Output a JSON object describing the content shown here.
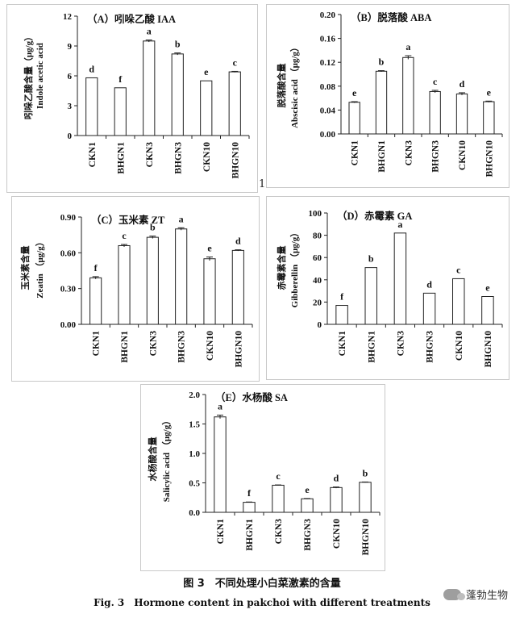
{
  "chart_data": [
    {
      "type": "bar",
      "title": "（A）吲哚乙酸 IAA",
      "ylabel_cn": "吲哚乙酸含量（μg/g）",
      "ylabel_en": "Indole acetic acid",
      "categories": [
        "CKN1",
        "BHGN1",
        "CKN3",
        "BHGN3",
        "CKN10",
        "BHGN10"
      ],
      "values": [
        5.8,
        4.8,
        9.5,
        8.2,
        5.5,
        6.4
      ],
      "errors": [
        0,
        0,
        0.1,
        0.1,
        0,
        0.05
      ],
      "letters": [
        "d",
        "f",
        "a",
        "b",
        "e",
        "c"
      ],
      "ylim": [
        0,
        12
      ],
      "yticks": [
        "0",
        "3",
        "6",
        "9",
        "12"
      ]
    },
    {
      "type": "bar",
      "title": "（B）脱落酸 ABA",
      "ylabel_cn": "脱落酸含量",
      "ylabel_en": "Abscisic acid （μg/g）",
      "categories": [
        "CKN1",
        "BHGN1",
        "CKN3",
        "BHGN3",
        "CKN10",
        "BHGN10"
      ],
      "values": [
        0.053,
        0.105,
        0.128,
        0.071,
        0.067,
        0.054
      ],
      "errors": [
        0.001,
        0.001,
        0.003,
        0.002,
        0.002,
        0.001
      ],
      "letters": [
        "e",
        "b",
        "a",
        "c",
        "d",
        "e"
      ],
      "ylim": [
        0,
        0.2
      ],
      "yticks": [
        "0.00",
        "0.04",
        "0.08",
        "0.12",
        "0.16",
        "0.20"
      ]
    },
    {
      "type": "bar",
      "title": "（C）玉米素 ZT",
      "ylabel_cn": "玉米素含量",
      "ylabel_en": "Zeatin （μg/g）",
      "categories": [
        "CKN1",
        "BHGN1",
        "CKN3",
        "BHGN3",
        "CKN10",
        "BHGN10"
      ],
      "values": [
        0.39,
        0.66,
        0.73,
        0.8,
        0.55,
        0.62
      ],
      "errors": [
        0.01,
        0.01,
        0.01,
        0.01,
        0.015,
        0.005
      ],
      "letters": [
        "f",
        "c",
        "b",
        "a",
        "e",
        "d"
      ],
      "ylim": [
        0,
        0.9
      ],
      "yticks": [
        "0.00",
        "0.30",
        "0.60",
        "0.90"
      ]
    },
    {
      "type": "bar",
      "title": "（D）赤霉素 GA",
      "ylabel_cn": "赤霉素含量",
      "ylabel_en": "Gibberellin （μg/g）",
      "categories": [
        "CKN1",
        "BHGN1",
        "CKN3",
        "BHGN3",
        "CKN10",
        "BHGN10"
      ],
      "values": [
        17,
        51,
        82,
        28,
        41,
        25
      ],
      "errors": [
        0,
        0,
        0,
        0,
        0,
        0
      ],
      "letters": [
        "f",
        "b",
        "a",
        "d",
        "c",
        "e"
      ],
      "ylim": [
        0,
        100
      ],
      "yticks": [
        "0",
        "20",
        "40",
        "60",
        "80",
        "100"
      ]
    },
    {
      "type": "bar",
      "title": "（E）水杨酸 SA",
      "ylabel_cn": "水杨酸含量",
      "ylabel_en": "Salicylic acid （μg/g）",
      "categories": [
        "CKN1",
        "BHGN1",
        "CKN3",
        "BHGN3",
        "CKN10",
        "BHGN10"
      ],
      "values": [
        1.62,
        0.17,
        0.46,
        0.23,
        0.42,
        0.51
      ],
      "errors": [
        0.03,
        0.005,
        0.005,
        0.005,
        0.01,
        0.005
      ],
      "letters": [
        "a",
        "f",
        "c",
        "e",
        "d",
        "b"
      ],
      "ylim": [
        0,
        2.0
      ],
      "yticks": [
        "0.0",
        "0.5",
        "1.0",
        "1.5",
        "2.0"
      ]
    }
  ],
  "caption_cn": "图 3　不同处理小白菜激素的含量",
  "caption_en": "Fig. 3　Hormone content in pakchoi with different treatments",
  "page_marker": "1",
  "watermark": "蓬勃生物"
}
